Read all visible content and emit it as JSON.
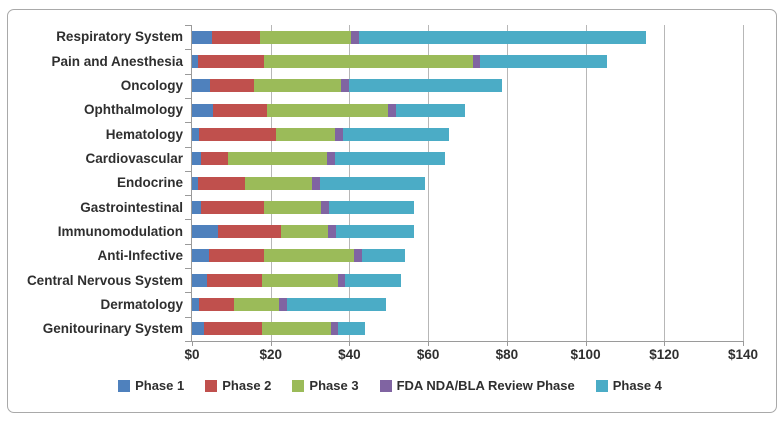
{
  "chart_data": {
    "type": "bar",
    "orientation": "horizontal",
    "stacked": true,
    "grid": "vertical",
    "legend_position": "bottom",
    "xlim": [
      0,
      140
    ],
    "x_ticks": [
      "$0",
      "$20",
      "$40",
      "$60",
      "$80",
      "$100",
      "$120",
      "$140"
    ],
    "categories": [
      "Respiratory System",
      "Pain and Anesthesia",
      "Oncology",
      "Ophthalmology",
      "Hematology",
      "Cardiovascular",
      "Endocrine",
      "Gastrointestinal",
      "Immunomodulation",
      "Anti-Infective",
      "Central Nervous System",
      "Dermatology",
      "Genitourinary System"
    ],
    "series": [
      {
        "name": "Phase 1",
        "color": "#4F81BD",
        "values": [
          5.2,
          1.4,
          4.5,
          5.3,
          1.7,
          2.2,
          1.4,
          2.4,
          6.6,
          4.2,
          3.9,
          1.8,
          3.1
        ]
      },
      {
        "name": "Phase 2",
        "color": "#C0504D",
        "values": [
          12.2,
          17.0,
          11.2,
          13.8,
          19.6,
          7.0,
          12.1,
          15.8,
          16.0,
          14.2,
          13.9,
          8.9,
          14.6
        ]
      },
      {
        "name": "Phase 3",
        "color": "#9BBB59",
        "values": [
          23.1,
          52.9,
          22.1,
          30.7,
          15.0,
          25.2,
          17.0,
          14.5,
          11.9,
          22.8,
          19.2,
          11.5,
          17.5
        ]
      },
      {
        "name": "FDA NDA/BLA Review Phase",
        "color": "#8064A2",
        "values": [
          2.0,
          2.0,
          2.0,
          2.0,
          2.0,
          2.0,
          2.0,
          2.0,
          2.0,
          2.0,
          2.0,
          2.0,
          2.0
        ]
      },
      {
        "name": "Phase 4",
        "color": "#4BACC6",
        "values": [
          72.9,
          32.1,
          38.9,
          17.6,
          27.0,
          27.8,
          26.7,
          21.8,
          19.8,
          11.0,
          14.1,
          25.2,
          6.8
        ]
      }
    ]
  },
  "styles": {
    "gridline_color": "#b7b7b7",
    "axis_color": "#9a9a9a",
    "text_color": "#2f2f2f",
    "border_color": "#a9a9a9"
  }
}
